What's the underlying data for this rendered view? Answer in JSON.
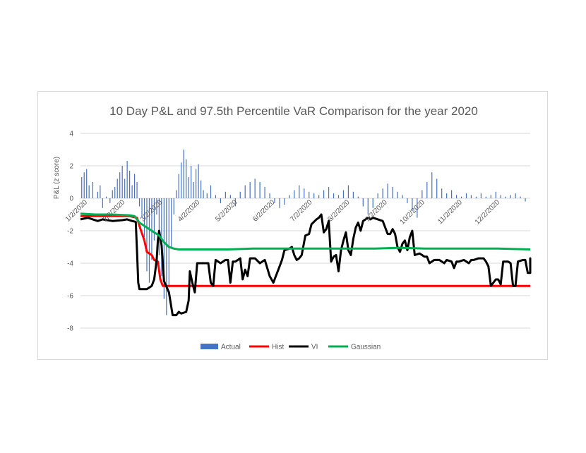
{
  "chart_data": {
    "type": "line",
    "title": "10 Day P&L and 97.5th Percentile VaR Comparison for the year 2020",
    "ylabel": "P&L (z score)",
    "xlabel": "",
    "ylim": [
      -8,
      4
    ],
    "yticks": [
      "4",
      "2",
      "0",
      "-2",
      "-4",
      "-6",
      "-8"
    ],
    "x_tick_labels": [
      "1/2/2020",
      "2/2/2020",
      "3/2/2020",
      "4/2/2020",
      "5/2/2020",
      "6/2/2020",
      "7/2/2020",
      "8/2/2020",
      "9/2/2020",
      "10/2/2020",
      "11/2/2020",
      "12/2/2020"
    ],
    "grid": true,
    "legend_position": "bottom",
    "colors": {
      "Actual": "#4472c4",
      "Hist": "#ff0000",
      "VI": "#000000",
      "Gaussian": "#00b050",
      "grid": "#d9d9d9",
      "text": "#595959"
    },
    "x_days": [
      0,
      366
    ],
    "actual": {
      "name": "Actual",
      "points": [
        [
          1,
          1.3
        ],
        [
          3,
          1.6
        ],
        [
          5,
          1.8
        ],
        [
          7,
          0.8
        ],
        [
          10,
          1.0
        ],
        [
          14,
          0.4
        ],
        [
          16,
          0.8
        ],
        [
          18,
          -0.6
        ],
        [
          21,
          0.1
        ],
        [
          24,
          -0.3
        ],
        [
          26,
          0.5
        ],
        [
          28,
          0.7
        ],
        [
          30,
          1.2
        ],
        [
          32,
          1.6
        ],
        [
          34,
          2.0
        ],
        [
          36,
          1.2
        ],
        [
          38,
          2.3
        ],
        [
          40,
          1.7
        ],
        [
          42,
          0.8
        ],
        [
          44,
          1.5
        ],
        [
          46,
          1.0
        ],
        [
          48,
          -0.5
        ],
        [
          50,
          -1.2
        ],
        [
          52,
          -2.4
        ],
        [
          54,
          -4.5
        ],
        [
          56,
          -5.2
        ],
        [
          58,
          -3.8
        ],
        [
          60,
          -2.6
        ],
        [
          62,
          -1.0
        ],
        [
          64,
          -3.5
        ],
        [
          66,
          -4.8
        ],
        [
          68,
          -6.2
        ],
        [
          70,
          -7.2
        ],
        [
          72,
          -5.5
        ],
        [
          74,
          -3.0
        ],
        [
          76,
          -1.0
        ],
        [
          78,
          0.5
        ],
        [
          80,
          1.5
        ],
        [
          82,
          2.2
        ],
        [
          84,
          3.0
        ],
        [
          86,
          2.4
        ],
        [
          88,
          1.3
        ],
        [
          90,
          2.0
        ],
        [
          92,
          1.0
        ],
        [
          94,
          1.8
        ],
        [
          96,
          2.1
        ],
        [
          98,
          1.1
        ],
        [
          100,
          0.5
        ],
        [
          103,
          0.3
        ],
        [
          106,
          0.8
        ],
        [
          110,
          0.2
        ],
        [
          114,
          -0.3
        ],
        [
          118,
          0.4
        ],
        [
          122,
          0.2
        ],
        [
          126,
          -0.5
        ],
        [
          130,
          0.4
        ],
        [
          134,
          0.8
        ],
        [
          138,
          1.0
        ],
        [
          142,
          1.2
        ],
        [
          146,
          1.0
        ],
        [
          150,
          0.7
        ],
        [
          154,
          0.3
        ],
        [
          158,
          -0.3
        ],
        [
          162,
          -0.6
        ],
        [
          166,
          -0.4
        ],
        [
          170,
          0.2
        ],
        [
          174,
          0.5
        ],
        [
          178,
          0.8
        ],
        [
          182,
          0.6
        ],
        [
          186,
          0.4
        ],
        [
          190,
          0.3
        ],
        [
          194,
          0.2
        ],
        [
          198,
          0.5
        ],
        [
          202,
          0.7
        ],
        [
          206,
          0.3
        ],
        [
          210,
          0.2
        ],
        [
          214,
          0.5
        ],
        [
          218,
          0.8
        ],
        [
          222,
          0.4
        ],
        [
          226,
          0.1
        ],
        [
          230,
          -0.5
        ],
        [
          234,
          -1.0
        ],
        [
          238,
          -0.6
        ],
        [
          242,
          0.3
        ],
        [
          246,
          0.6
        ],
        [
          250,
          0.9
        ],
        [
          254,
          0.7
        ],
        [
          258,
          0.4
        ],
        [
          262,
          0.2
        ],
        [
          266,
          -0.3
        ],
        [
          270,
          -0.8
        ],
        [
          274,
          -1.2
        ],
        [
          278,
          0.5
        ],
        [
          282,
          1.0
        ],
        [
          286,
          1.6
        ],
        [
          290,
          1.2
        ],
        [
          294,
          0.6
        ],
        [
          298,
          0.3
        ],
        [
          302,
          0.5
        ],
        [
          306,
          0.2
        ],
        [
          310,
          0.1
        ],
        [
          314,
          0.3
        ],
        [
          318,
          0.2
        ],
        [
          322,
          0.1
        ],
        [
          326,
          0.3
        ],
        [
          330,
          0.1
        ],
        [
          334,
          0.2
        ],
        [
          338,
          0.4
        ],
        [
          342,
          0.2
        ],
        [
          346,
          0.1
        ],
        [
          350,
          0.2
        ],
        [
          354,
          0.3
        ],
        [
          358,
          0.1
        ],
        [
          362,
          -0.2
        ]
      ]
    },
    "lines": [
      {
        "name": "Hist",
        "points": [
          [
            0,
            -1.1
          ],
          [
            18,
            -1.1
          ],
          [
            40,
            -1.1
          ],
          [
            46,
            -1.2
          ],
          [
            48,
            -1.7
          ],
          [
            52,
            -2.6
          ],
          [
            54,
            -3.3
          ],
          [
            58,
            -3.5
          ],
          [
            60,
            -3.8
          ],
          [
            63,
            -3.9
          ],
          [
            65,
            -5.0
          ],
          [
            67,
            -5.4
          ],
          [
            366,
            -5.4
          ]
        ]
      },
      {
        "name": "VI",
        "points": [
          [
            0,
            -1.3
          ],
          [
            6,
            -1.2
          ],
          [
            10,
            -1.3
          ],
          [
            14,
            -1.4
          ],
          [
            18,
            -1.3
          ],
          [
            26,
            -1.4
          ],
          [
            34,
            -1.35
          ],
          [
            38,
            -1.3
          ],
          [
            42,
            -1.4
          ],
          [
            45,
            -1.45
          ],
          [
            46,
            -3.3
          ],
          [
            47,
            -5.2
          ],
          [
            48,
            -5.6
          ],
          [
            54,
            -5.6
          ],
          [
            58,
            -5.4
          ],
          [
            60,
            -5.0
          ],
          [
            62,
            -3.8
          ],
          [
            63,
            -2.6
          ],
          [
            64,
            -2.0
          ],
          [
            66,
            -2.9
          ],
          [
            68,
            -5.1
          ],
          [
            72,
            -5.8
          ],
          [
            75,
            -7.2
          ],
          [
            78,
            -7.2
          ],
          [
            80,
            -7.0
          ],
          [
            82,
            -7.1
          ],
          [
            86,
            -7.0
          ],
          [
            88,
            -6.3
          ],
          [
            89,
            -4.5
          ],
          [
            91,
            -5.2
          ],
          [
            93,
            -5.8
          ],
          [
            95,
            -4.0
          ],
          [
            100,
            -4.0
          ],
          [
            104,
            -4.0
          ],
          [
            106,
            -5.2
          ],
          [
            108,
            -5.4
          ],
          [
            110,
            -3.8
          ],
          [
            114,
            -4.0
          ],
          [
            118,
            -3.8
          ],
          [
            120,
            -3.8
          ],
          [
            122,
            -5.2
          ],
          [
            124,
            -3.9
          ],
          [
            126,
            -3.9
          ],
          [
            130,
            -3.7
          ],
          [
            132,
            -5.0
          ],
          [
            134,
            -4.4
          ],
          [
            136,
            -4.8
          ],
          [
            138,
            -3.7
          ],
          [
            142,
            -3.7
          ],
          [
            146,
            -4.0
          ],
          [
            150,
            -3.8
          ],
          [
            154,
            -4.8
          ],
          [
            157,
            -5.2
          ],
          [
            159,
            -4.8
          ],
          [
            162,
            -4.2
          ],
          [
            164,
            -3.8
          ],
          [
            166,
            -3.2
          ],
          [
            170,
            -3.1
          ],
          [
            172,
            -3.0
          ],
          [
            174,
            -3.5
          ],
          [
            176,
            -3.8
          ],
          [
            178,
            -3.7
          ],
          [
            180,
            -3.5
          ],
          [
            183,
            -2.3
          ],
          [
            186,
            -2.2
          ],
          [
            188,
            -1.6
          ],
          [
            192,
            -1.3
          ],
          [
            194,
            -1.2
          ],
          [
            196,
            -1.0
          ],
          [
            198,
            -2.1
          ],
          [
            200,
            -1.9
          ],
          [
            202,
            -1.4
          ],
          [
            204,
            -3.9
          ],
          [
            206,
            -3.6
          ],
          [
            208,
            -3.5
          ],
          [
            210,
            -4.5
          ],
          [
            212,
            -3.2
          ],
          [
            214,
            -2.6
          ],
          [
            216,
            -2.1
          ],
          [
            218,
            -3.2
          ],
          [
            220,
            -3.5
          ],
          [
            222,
            -2.5
          ],
          [
            224,
            -1.8
          ],
          [
            226,
            -1.5
          ],
          [
            228,
            -2.0
          ],
          [
            230,
            -1.4
          ],
          [
            232,
            -1.3
          ],
          [
            234,
            -1.2
          ],
          [
            236,
            -1.3
          ],
          [
            238,
            -1.2
          ],
          [
            242,
            -1.3
          ],
          [
            246,
            -1.4
          ],
          [
            248,
            -1.8
          ],
          [
            250,
            -2.2
          ],
          [
            252,
            -2.2
          ],
          [
            254,
            -1.9
          ],
          [
            256,
            -2.2
          ],
          [
            258,
            -3.0
          ],
          [
            260,
            -3.3
          ],
          [
            262,
            -2.8
          ],
          [
            264,
            -2.6
          ],
          [
            266,
            -3.2
          ],
          [
            268,
            -2.4
          ],
          [
            270,
            -2.0
          ],
          [
            272,
            -3.5
          ],
          [
            276,
            -3.4
          ],
          [
            280,
            -3.6
          ],
          [
            282,
            -3.6
          ],
          [
            284,
            -4.0
          ],
          [
            288,
            -3.8
          ],
          [
            292,
            -3.8
          ],
          [
            296,
            -4.0
          ],
          [
            298,
            -3.8
          ],
          [
            302,
            -3.9
          ],
          [
            304,
            -4.3
          ],
          [
            306,
            -3.9
          ],
          [
            308,
            -3.9
          ],
          [
            312,
            -3.8
          ],
          [
            316,
            -4.0
          ],
          [
            318,
            -3.8
          ],
          [
            320,
            -3.8
          ],
          [
            324,
            -3.7
          ],
          [
            328,
            -3.7
          ],
          [
            330,
            -3.9
          ],
          [
            332,
            -4.2
          ],
          [
            334,
            -5.4
          ],
          [
            336,
            -5.2
          ],
          [
            338,
            -5.0
          ],
          [
            340,
            -5.0
          ],
          [
            342,
            -5.3
          ],
          [
            344,
            -3.9
          ],
          [
            348,
            -3.9
          ],
          [
            350,
            -4.0
          ],
          [
            352,
            -5.4
          ],
          [
            354,
            -5.4
          ],
          [
            356,
            -3.9
          ],
          [
            360,
            -3.8
          ],
          [
            362,
            -3.8
          ],
          [
            364,
            -4.6
          ],
          [
            366,
            -4.6
          ],
          [
            370,
            -3.7
          ],
          [
            380,
            -3.7
          ],
          [
            400,
            -3.7
          ],
          [
            420,
            -3.7
          ],
          [
            440,
            -3.7
          ],
          [
            460,
            -3.75
          ]
        ]
      },
      {
        "name": "Gaussian",
        "points": [
          [
            0,
            -0.95
          ],
          [
            12,
            -1.0
          ],
          [
            25,
            -1.0
          ],
          [
            40,
            -1.05
          ],
          [
            44,
            -1.1
          ],
          [
            48,
            -1.5
          ],
          [
            52,
            -1.7
          ],
          [
            56,
            -1.9
          ],
          [
            60,
            -2.1
          ],
          [
            64,
            -2.3
          ],
          [
            68,
            -2.7
          ],
          [
            72,
            -3.0
          ],
          [
            76,
            -3.1
          ],
          [
            80,
            -3.15
          ],
          [
            100,
            -3.15
          ],
          [
            120,
            -3.15
          ],
          [
            140,
            -3.1
          ],
          [
            160,
            -3.1
          ],
          [
            180,
            -3.1
          ],
          [
            200,
            -3.1
          ],
          [
            220,
            -3.1
          ],
          [
            240,
            -3.1
          ],
          [
            260,
            -3.05
          ],
          [
            280,
            -3.1
          ],
          [
            300,
            -3.1
          ],
          [
            320,
            -3.1
          ],
          [
            340,
            -3.1
          ],
          [
            366,
            -3.15
          ]
        ]
      }
    ],
    "series": [
      {
        "name": "Actual"
      },
      {
        "name": "Hist"
      },
      {
        "name": "VI"
      },
      {
        "name": "Gaussian"
      }
    ]
  }
}
